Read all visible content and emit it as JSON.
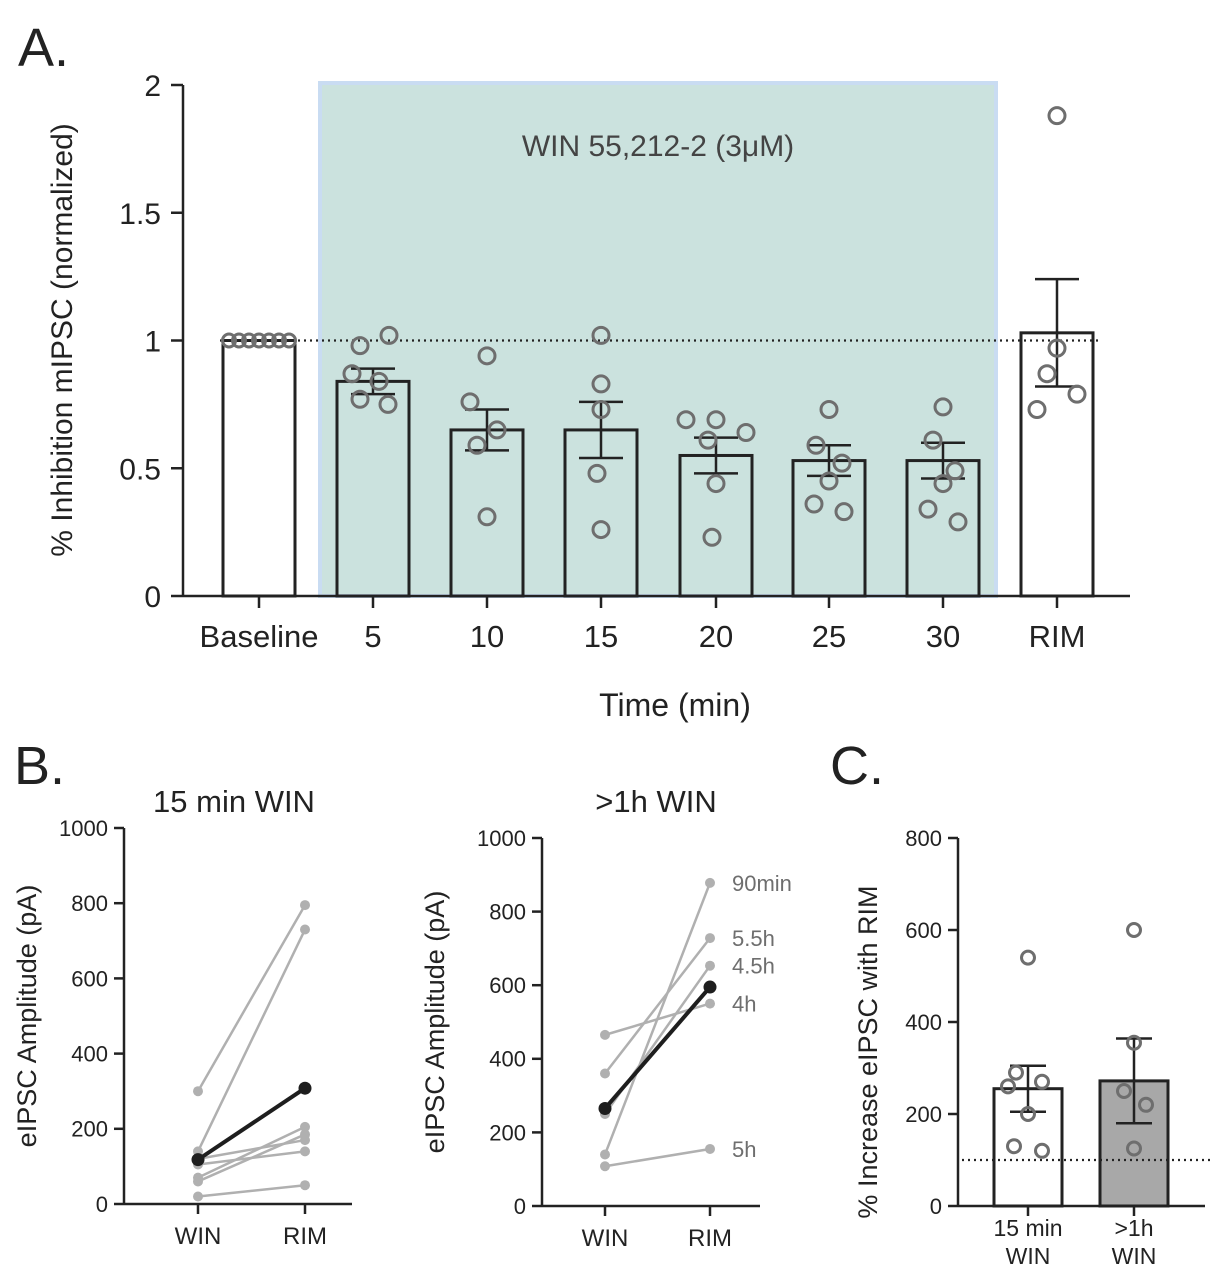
{
  "colors": {
    "axis": "#222222",
    "shade_fill": "#cbe2de",
    "shade_edge": "#c9dcf2",
    "marker": "#6e6e6e",
    "bar_fill_white": "#ffffff",
    "bar_fill_gray": "#a8a8a8",
    "line_light": "#b0b0b0",
    "line_mean": "#1e1e1e",
    "end_label": "#6e6e6e"
  },
  "panels": {
    "A": {
      "letter": "A."
    },
    "B": {
      "letter": "B."
    },
    "C": {
      "letter": "C."
    }
  },
  "chart_data": [
    {
      "id": "A",
      "type": "bar",
      "title": "",
      "xlabel": "Time (min)",
      "ylabel": "% Inhibition mIPSC (normalized)",
      "ylim": [
        0,
        2
      ],
      "yticks": [
        0,
        0.5,
        1,
        1.5,
        2
      ],
      "ytick_labels": [
        "0",
        "0.5",
        "1",
        "1.5",
        "2"
      ],
      "categories": [
        "Baseline",
        "5",
        "10",
        "15",
        "20",
        "25",
        "30",
        "RIM"
      ],
      "means": [
        1.0,
        0.84,
        0.65,
        0.65,
        0.55,
        0.53,
        0.53,
        1.03
      ],
      "sem": [
        0,
        0.05,
        0.08,
        0.11,
        0.07,
        0.06,
        0.07,
        0.21
      ],
      "points": [
        [
          1,
          1,
          1,
          1,
          1,
          1,
          1
        ],
        [
          0.98,
          1.02,
          0.87,
          0.84,
          0.77,
          0.75
        ],
        [
          0.94,
          0.76,
          0.65,
          0.59,
          0.31
        ],
        [
          1.02,
          0.83,
          0.73,
          0.48,
          0.26
        ],
        [
          0.69,
          0.69,
          0.64,
          0.61,
          0.44,
          0.23
        ],
        [
          0.73,
          0.59,
          0.52,
          0.45,
          0.36,
          0.33
        ],
        [
          0.74,
          0.61,
          0.49,
          0.44,
          0.34,
          0.29
        ],
        [
          1.88,
          0.97,
          0.87,
          0.79,
          0.73
        ]
      ],
      "reference_line": 1,
      "shaded_region": {
        "label": "WIN 55,212-2 (3μM)",
        "from_category": "5",
        "to_category": "30"
      },
      "grid": false
    },
    {
      "id": "B1",
      "type": "line",
      "title": "15 min WIN",
      "xlabel": "",
      "ylabel": "eIPSC Amplitude (pA)",
      "ylim": [
        0,
        1000
      ],
      "yticks": [
        0,
        200,
        400,
        600,
        800,
        1000
      ],
      "ytick_labels": [
        "0",
        "200",
        "400",
        "600",
        "800",
        "1000"
      ],
      "categories": [
        "WIN",
        "RIM"
      ],
      "series": [
        {
          "values": [
            300,
            795
          ]
        },
        {
          "values": [
            140,
            730
          ]
        },
        {
          "values": [
            70,
            205
          ]
        },
        {
          "values": [
            60,
            185
          ]
        },
        {
          "values": [
            120,
            170
          ]
        },
        {
          "values": [
            105,
            140
          ]
        },
        {
          "values": [
            20,
            50
          ]
        }
      ],
      "mean_series": {
        "values": [
          118,
          308
        ]
      },
      "grid": false
    },
    {
      "id": "B2",
      "type": "line",
      "title": ">1h WIN",
      "xlabel": "",
      "ylabel": "eIPSC Amplitude (pA)",
      "ylim": [
        0,
        1000
      ],
      "yticks": [
        0,
        200,
        400,
        600,
        800,
        1000
      ],
      "ytick_labels": [
        "0",
        "200",
        "400",
        "600",
        "800",
        "1000"
      ],
      "categories": [
        "WIN",
        "RIM"
      ],
      "series": [
        {
          "name": "90min",
          "values": [
            140,
            878
          ]
        },
        {
          "name": "5.5h",
          "values": [
            360,
            728
          ]
        },
        {
          "name": "4.5h",
          "values": [
            250,
            653
          ]
        },
        {
          "name": "4h",
          "values": [
            465,
            550
          ]
        },
        {
          "name": "5h",
          "values": [
            108,
            155
          ]
        }
      ],
      "mean_series": {
        "values": [
          265,
          595
        ]
      },
      "grid": false
    },
    {
      "id": "C",
      "type": "bar",
      "title": "",
      "xlabel": "",
      "ylabel": "% Increase eIPSC with RIM",
      "ylim": [
        0,
        800
      ],
      "yticks": [
        0,
        200,
        400,
        600,
        800
      ],
      "ytick_labels": [
        "0",
        "200",
        "400",
        "600",
        "800"
      ],
      "categories": [
        [
          "15 min",
          "WIN"
        ],
        [
          ">1h",
          "WIN"
        ]
      ],
      "means": [
        255,
        272
      ],
      "sem": [
        50,
        92
      ],
      "points": [
        [
          540,
          290,
          270,
          260,
          200,
          130,
          120
        ],
        [
          600,
          355,
          250,
          220,
          125
        ]
      ],
      "reference_line": 100,
      "grid": false
    }
  ]
}
